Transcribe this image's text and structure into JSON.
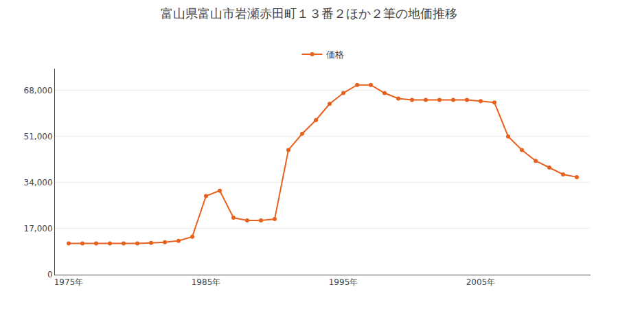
{
  "chart_data": {
    "type": "line",
    "title": "富山県富山市岩瀬赤田町１３番２ほか２筆の地価推移",
    "x": [
      1975,
      1976,
      1977,
      1978,
      1979,
      1980,
      1981,
      1982,
      1983,
      1984,
      1985,
      1986,
      1987,
      1988,
      1989,
      1990,
      1991,
      1992,
      1993,
      1994,
      1995,
      1996,
      1997,
      1998,
      1999,
      2000,
      2001,
      2002,
      2003,
      2004,
      2005,
      2006,
      2007,
      2008,
      2009,
      2010,
      2011,
      2012
    ],
    "series": [
      {
        "name": "価格",
        "color": "#e8601c",
        "marker": "circle",
        "values": [
          11500,
          11500,
          11500,
          11500,
          11500,
          11500,
          11700,
          12000,
          12500,
          14000,
          29000,
          31000,
          21000,
          20000,
          20000,
          20500,
          46000,
          52000,
          57000,
          63000,
          67000,
          70000,
          70000,
          67000,
          65000,
          64500,
          64500,
          64500,
          64500,
          64500,
          64000,
          63500,
          51000,
          46000,
          42000,
          39500,
          37000,
          36000
        ]
      }
    ],
    "xlim": [
      1974,
      2013
    ],
    "xticks": [
      {
        "value": 1975,
        "label": "1975年"
      },
      {
        "value": 1985,
        "label": "1985年"
      },
      {
        "value": 1995,
        "label": "1995年"
      },
      {
        "value": 2005,
        "label": "2005年"
      }
    ],
    "ylim": [
      0,
      76000
    ],
    "yticks": [
      0,
      {
        "value": 17000,
        "label": "17,000"
      },
      {
        "value": 34000,
        "label": "34,000"
      },
      {
        "value": 51000,
        "label": "51,000"
      },
      {
        "value": 68000,
        "label": "68,000"
      }
    ],
    "grid": "y",
    "legend": "top"
  }
}
